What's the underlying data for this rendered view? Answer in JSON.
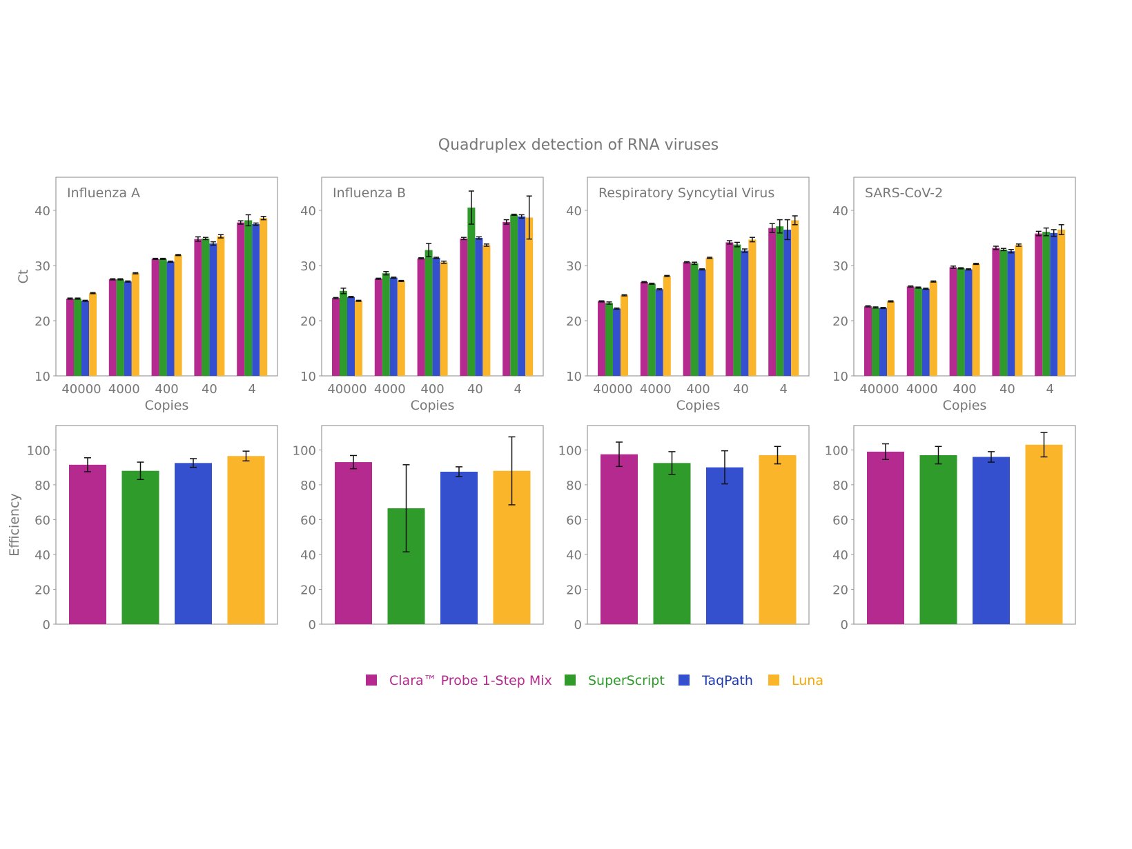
{
  "chart_data": {
    "title": "Quadruplex detection of RNA viruses",
    "type": "bar",
    "colors": {
      "Clara™ Probe 1-Step Mix": "#b52a8f",
      "SuperScript": "#2e9b2b",
      "TaqPath": "#3550cf",
      "Luna": "#fbb52a"
    },
    "legend": {
      "placement": "bottom",
      "entries": [
        "Clara™ Probe 1-Step Mix",
        "SuperScript",
        "TaqPath",
        "Luna"
      ]
    },
    "ct": {
      "ylabel": "Ct",
      "xlabel": "Copies",
      "ylim": [
        10,
        46
      ],
      "yticks": [
        10,
        20,
        30,
        40
      ],
      "categories": [
        "40000",
        "4000",
        "400",
        "40",
        "4"
      ],
      "panels": [
        {
          "title": "Influenza A",
          "values": [
            [
              24.0,
              27.5,
              31.2,
              34.8,
              37.8
            ],
            [
              24.0,
              27.5,
              31.2,
              34.9,
              38.2
            ],
            [
              23.6,
              27.1,
              30.7,
              34.0,
              37.5
            ],
            [
              25.0,
              28.6,
              31.9,
              35.3,
              38.6
            ]
          ],
          "errors": [
            [
              0.1,
              0.1,
              0.1,
              0.4,
              0.3
            ],
            [
              0.1,
              0.1,
              0.1,
              0.2,
              1.0
            ],
            [
              0.1,
              0.1,
              0.1,
              0.3,
              0.2
            ],
            [
              0.1,
              0.1,
              0.1,
              0.3,
              0.3
            ]
          ]
        },
        {
          "title": "Influenza B",
          "values": [
            [
              24.1,
              27.6,
              31.3,
              34.9,
              37.9
            ],
            [
              25.4,
              28.6,
              32.8,
              40.5,
              39.2
            ],
            [
              24.3,
              27.8,
              31.4,
              35.0,
              38.9
            ],
            [
              23.6,
              27.2,
              30.6,
              33.7,
              38.7
            ]
          ],
          "errors": [
            [
              0.1,
              0.1,
              0.1,
              0.2,
              0.4
            ],
            [
              0.5,
              0.3,
              1.2,
              3.0,
              0.1
            ],
            [
              0.1,
              0.1,
              0.1,
              0.2,
              0.3
            ],
            [
              0.1,
              0.1,
              0.2,
              0.2,
              3.9
            ]
          ]
        },
        {
          "title": "Respiratory Syncytial Virus",
          "values": [
            [
              23.5,
              27.0,
              30.6,
              34.2,
              36.8
            ],
            [
              23.2,
              26.7,
              30.4,
              33.8,
              37.1
            ],
            [
              22.2,
              25.7,
              29.3,
              32.7,
              36.5
            ],
            [
              24.6,
              28.1,
              31.4,
              34.7,
              38.2
            ]
          ],
          "errors": [
            [
              0.1,
              0.1,
              0.1,
              0.3,
              0.8
            ],
            [
              0.2,
              0.1,
              0.2,
              0.4,
              1.2
            ],
            [
              0.1,
              0.1,
              0.1,
              0.3,
              1.8
            ],
            [
              0.1,
              0.1,
              0.1,
              0.4,
              0.8
            ]
          ]
        },
        {
          "title": "SARS-CoV-2",
          "values": [
            [
              22.6,
              26.2,
              29.7,
              33.2,
              35.8
            ],
            [
              22.4,
              26.0,
              29.5,
              32.9,
              36.1
            ],
            [
              22.3,
              25.8,
              29.3,
              32.6,
              35.9
            ],
            [
              23.5,
              27.1,
              30.3,
              33.7,
              36.5
            ]
          ],
          "errors": [
            [
              0.1,
              0.1,
              0.2,
              0.3,
              0.4
            ],
            [
              0.1,
              0.1,
              0.1,
              0.2,
              0.7
            ],
            [
              0.1,
              0.1,
              0.1,
              0.3,
              0.6
            ],
            [
              0.1,
              0.1,
              0.1,
              0.2,
              0.9
            ]
          ]
        }
      ]
    },
    "efficiency": {
      "ylabel": "Efficiency",
      "ylim": [
        0,
        114
      ],
      "yticks": [
        0,
        20,
        40,
        60,
        80,
        100
      ],
      "panels": [
        {
          "values": [
            91.5,
            88,
            92.5,
            96.5
          ],
          "errors": [
            4,
            5,
            2.5,
            2.8
          ]
        },
        {
          "values": [
            93,
            66.5,
            87.5,
            88
          ],
          "errors": [
            3.8,
            25,
            2.8,
            19.5
          ]
        },
        {
          "values": [
            97.5,
            92.5,
            90,
            97
          ],
          "errors": [
            7,
            6.5,
            9.5,
            5
          ]
        },
        {
          "values": [
            99,
            97,
            96,
            103
          ],
          "errors": [
            4.5,
            5,
            3,
            7
          ]
        }
      ]
    }
  }
}
